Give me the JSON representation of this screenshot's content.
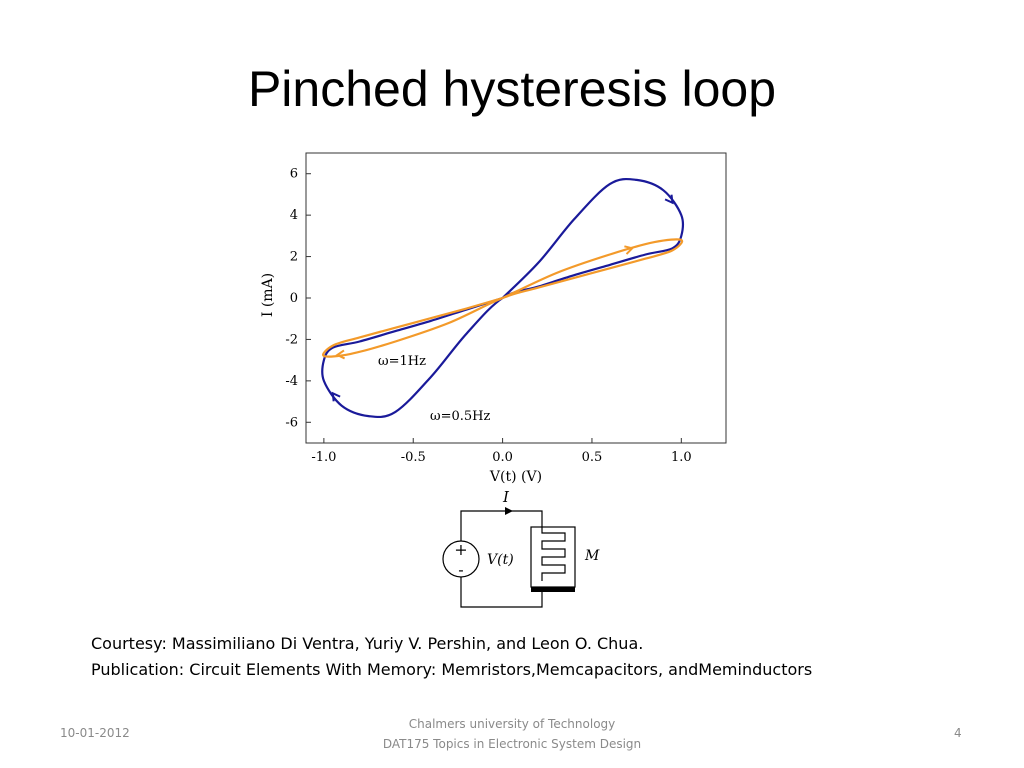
{
  "slide": {
    "title": "Pinched hysteresis loop",
    "courtesy_line1": "Courtesy: Massimiliano Di Ventra, Yuriy V. Pershin, and Leon O. Chua.",
    "courtesy_line2": "Publication: Circuit Elements With Memory: Memristors,Memcapacitors, andMeminductors"
  },
  "footer": {
    "date": "10-01-2012",
    "line1": "Chalmers university of Technology",
    "line2": "DAT175 Topics in Electronic System Design",
    "page": "4"
  },
  "chart_data": {
    "type": "line",
    "xlabel": "V(t) (V)",
    "ylabel": "I (mA)",
    "xlim": [
      -1.1,
      1.25
    ],
    "ylim": [
      -7,
      7
    ],
    "x_ticks": [
      "-1.0",
      "-0.5",
      "0.0",
      "0.5",
      "1.0"
    ],
    "y_ticks": [
      "6",
      "4",
      "2",
      "0",
      "-2",
      "-4",
      "-6"
    ],
    "grid": false,
    "series": [
      {
        "name": "ω=0.5Hz",
        "color": "#1a1a9a",
        "x": [
          0.0,
          0.2,
          0.4,
          0.6,
          0.75,
          0.9,
          1.0,
          1.0,
          0.95,
          0.8,
          0.6,
          0.4,
          0.2,
          0.0,
          -0.2,
          -0.4,
          -0.6,
          -0.75,
          -0.9,
          -1.0,
          -1.0,
          -0.95,
          -0.8,
          -0.6,
          -0.4,
          -0.2,
          0.0
        ],
        "y": [
          0.0,
          1.7,
          3.8,
          5.5,
          5.7,
          5.2,
          4.0,
          3.0,
          2.4,
          2.1,
          1.6,
          1.1,
          0.55,
          0.0,
          -1.7,
          -3.8,
          -5.5,
          -5.7,
          -5.2,
          -4.0,
          -3.0,
          -2.4,
          -2.1,
          -1.6,
          -1.1,
          -0.55,
          0.0
        ]
      },
      {
        "name": "ω=1Hz",
        "color": "#f39a2a",
        "x": [
          0.0,
          0.3,
          0.6,
          0.85,
          1.0,
          0.95,
          0.8,
          0.5,
          0.2,
          0.0,
          -0.3,
          -0.6,
          -0.85,
          -1.0,
          -0.95,
          -0.8,
          -0.5,
          -0.2,
          0.0
        ],
        "y": [
          0.0,
          1.2,
          2.1,
          2.7,
          2.8,
          2.3,
          1.9,
          1.2,
          0.5,
          0.0,
          -1.2,
          -2.1,
          -2.7,
          -2.8,
          -2.3,
          -1.9,
          -1.2,
          -0.5,
          0.0
        ]
      }
    ],
    "annotations": [
      "ω=1Hz",
      "ω=0.5Hz"
    ]
  },
  "circuit": {
    "current_label": "I",
    "source_plus": "+",
    "source_minus": "-",
    "source_label": "V(t)",
    "device_label": "M"
  }
}
